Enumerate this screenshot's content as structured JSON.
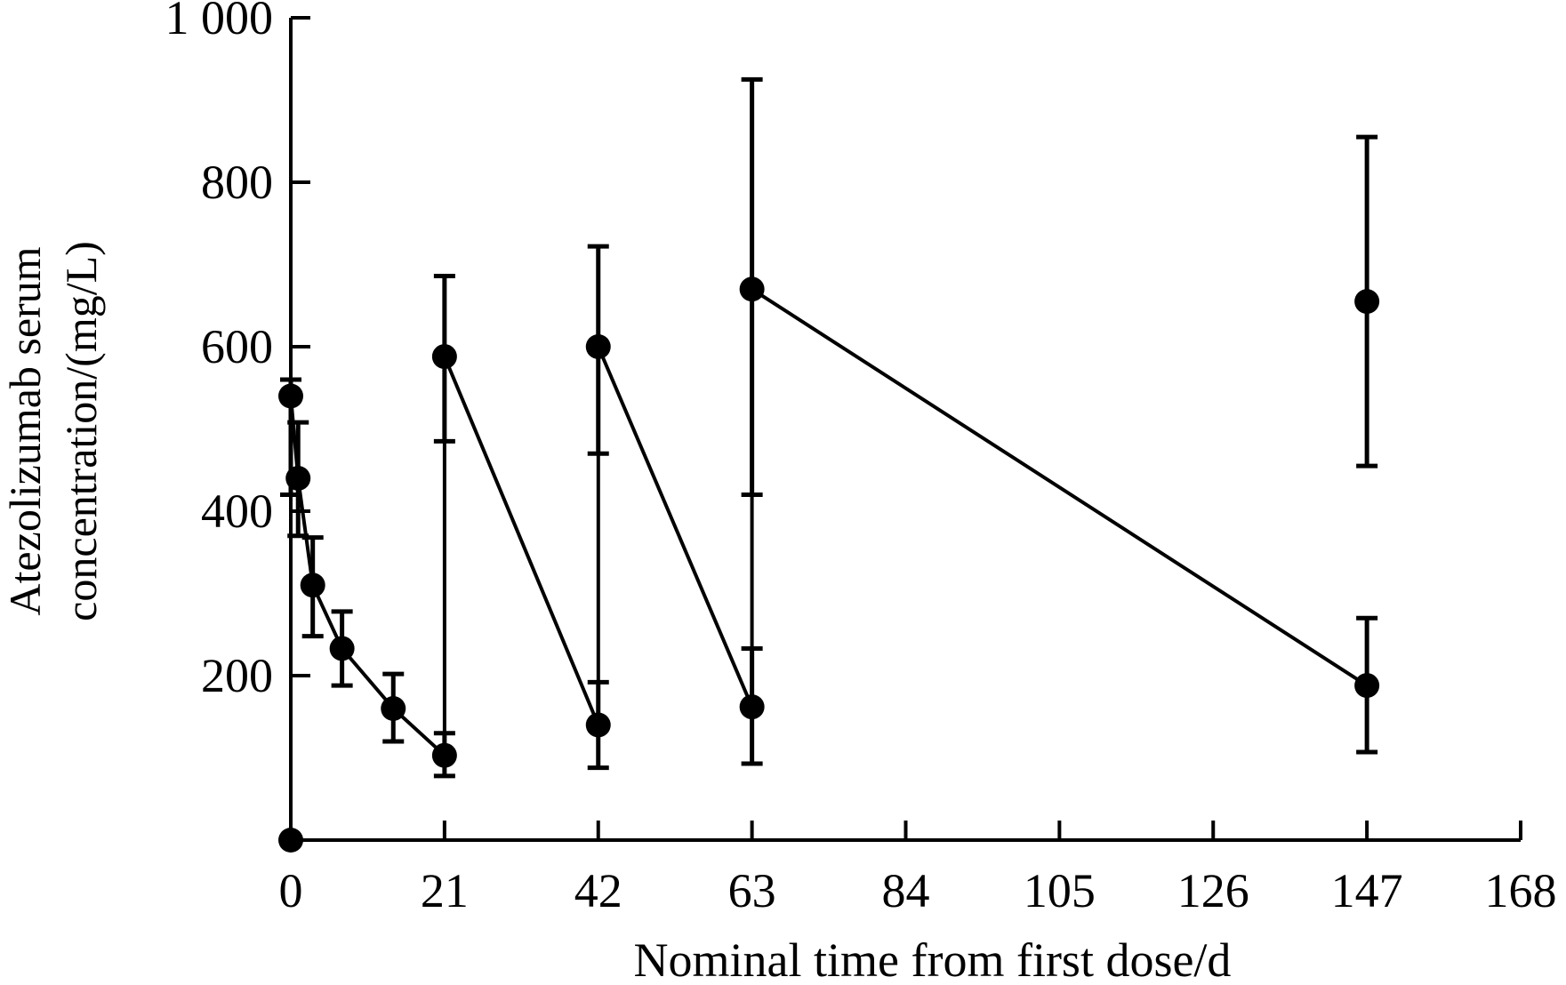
{
  "chart_data": {
    "type": "line",
    "title": "",
    "xlabel": "Nominal time from first dose/d",
    "ylabel_line1": "Atezolizumab serum",
    "ylabel_line2": "concentration/(mg/L)",
    "xlim": [
      0,
      168
    ],
    "ylim": [
      0,
      1000
    ],
    "x_ticks": [
      0,
      21,
      42,
      63,
      84,
      105,
      126,
      147,
      168
    ],
    "x_tick_labels": [
      "0",
      "21",
      "42",
      "63",
      "84",
      "105",
      "126",
      "147",
      "168"
    ],
    "y_ticks": [
      200,
      400,
      600,
      800,
      1000
    ],
    "y_tick_labels": [
      "200",
      "400",
      "600",
      "800",
      "1 000"
    ],
    "y_axis_at_x": 0,
    "grid": false,
    "legend": "none",
    "color": "#000000",
    "series": [
      {
        "points": [
          {
            "x": 0,
            "y": 0,
            "lo": 0,
            "hi": 0
          },
          {
            "x": 0,
            "y": 540,
            "lo": 420,
            "hi": 560
          },
          {
            "x": 1,
            "y": 440,
            "lo": 370,
            "hi": 508
          },
          {
            "x": 3,
            "y": 310,
            "lo": 248,
            "hi": 368
          },
          {
            "x": 7,
            "y": 233,
            "lo": 188,
            "hi": 278
          },
          {
            "x": 14,
            "y": 160,
            "lo": 120,
            "hi": 202
          },
          {
            "x": 21,
            "y": 103,
            "lo": 78,
            "hi": 130
          },
          {
            "x": 21,
            "y": 588,
            "lo": 485,
            "hi": 686
          },
          {
            "x": 42,
            "y": 140,
            "lo": 88,
            "hi": 192
          },
          {
            "x": 42,
            "y": 600,
            "lo": 470,
            "hi": 722
          },
          {
            "x": 63,
            "y": 162,
            "lo": 93,
            "hi": 233
          },
          {
            "x": 63,
            "y": 670,
            "lo": 420,
            "hi": 925
          },
          {
            "x": 147,
            "y": 188,
            "lo": 107,
            "hi": 270
          }
        ]
      },
      {
        "points": [
          {
            "x": 147,
            "y": 655,
            "lo": 455,
            "hi": 855
          }
        ]
      }
    ]
  }
}
